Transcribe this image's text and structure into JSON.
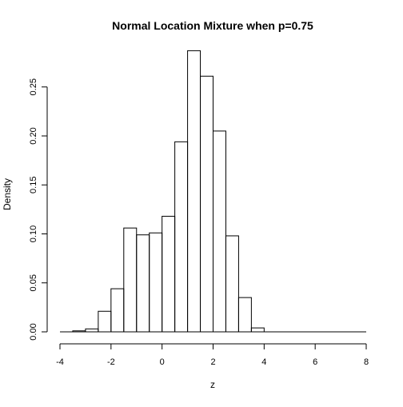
{
  "chart_data": {
    "type": "bar",
    "title": "Normal Location Mixture when p=0.75",
    "xlabel": "z",
    "ylabel": "Density",
    "xlim": [
      -4,
      8
    ],
    "ylim": [
      0,
      0.28
    ],
    "x_ticks": [
      "-4",
      "-2",
      "0",
      "2",
      "4",
      "6",
      "8"
    ],
    "y_ticks": [
      "0.00",
      "0.05",
      "0.10",
      "0.15",
      "0.20",
      "0.25"
    ],
    "bin_edges": [
      -3.5,
      -3,
      -2.5,
      -2,
      -1.5,
      -1,
      -0.5,
      0,
      0.5,
      1,
      1.5,
      2,
      2.5,
      3,
      3.5,
      4,
      4.5,
      5,
      5.5,
      6
    ],
    "values": [
      0.001,
      0.003,
      0.021,
      0.044,
      0.106,
      0.099,
      0.101,
      0.118,
      0.194,
      0.287,
      0.261,
      0.205,
      0.098,
      0.035,
      0.004,
      0,
      0,
      0,
      0
    ],
    "series": [
      {
        "name": "",
        "values": [
          0.001,
          0.003,
          0.021,
          0.044,
          0.106,
          0.099,
          0.101,
          0.118,
          0.194,
          0.287,
          0.261,
          0.205,
          0.098,
          0.035,
          0.004,
          0,
          0,
          0,
          0
        ]
      }
    ],
    "grid": false,
    "legend": "none"
  }
}
